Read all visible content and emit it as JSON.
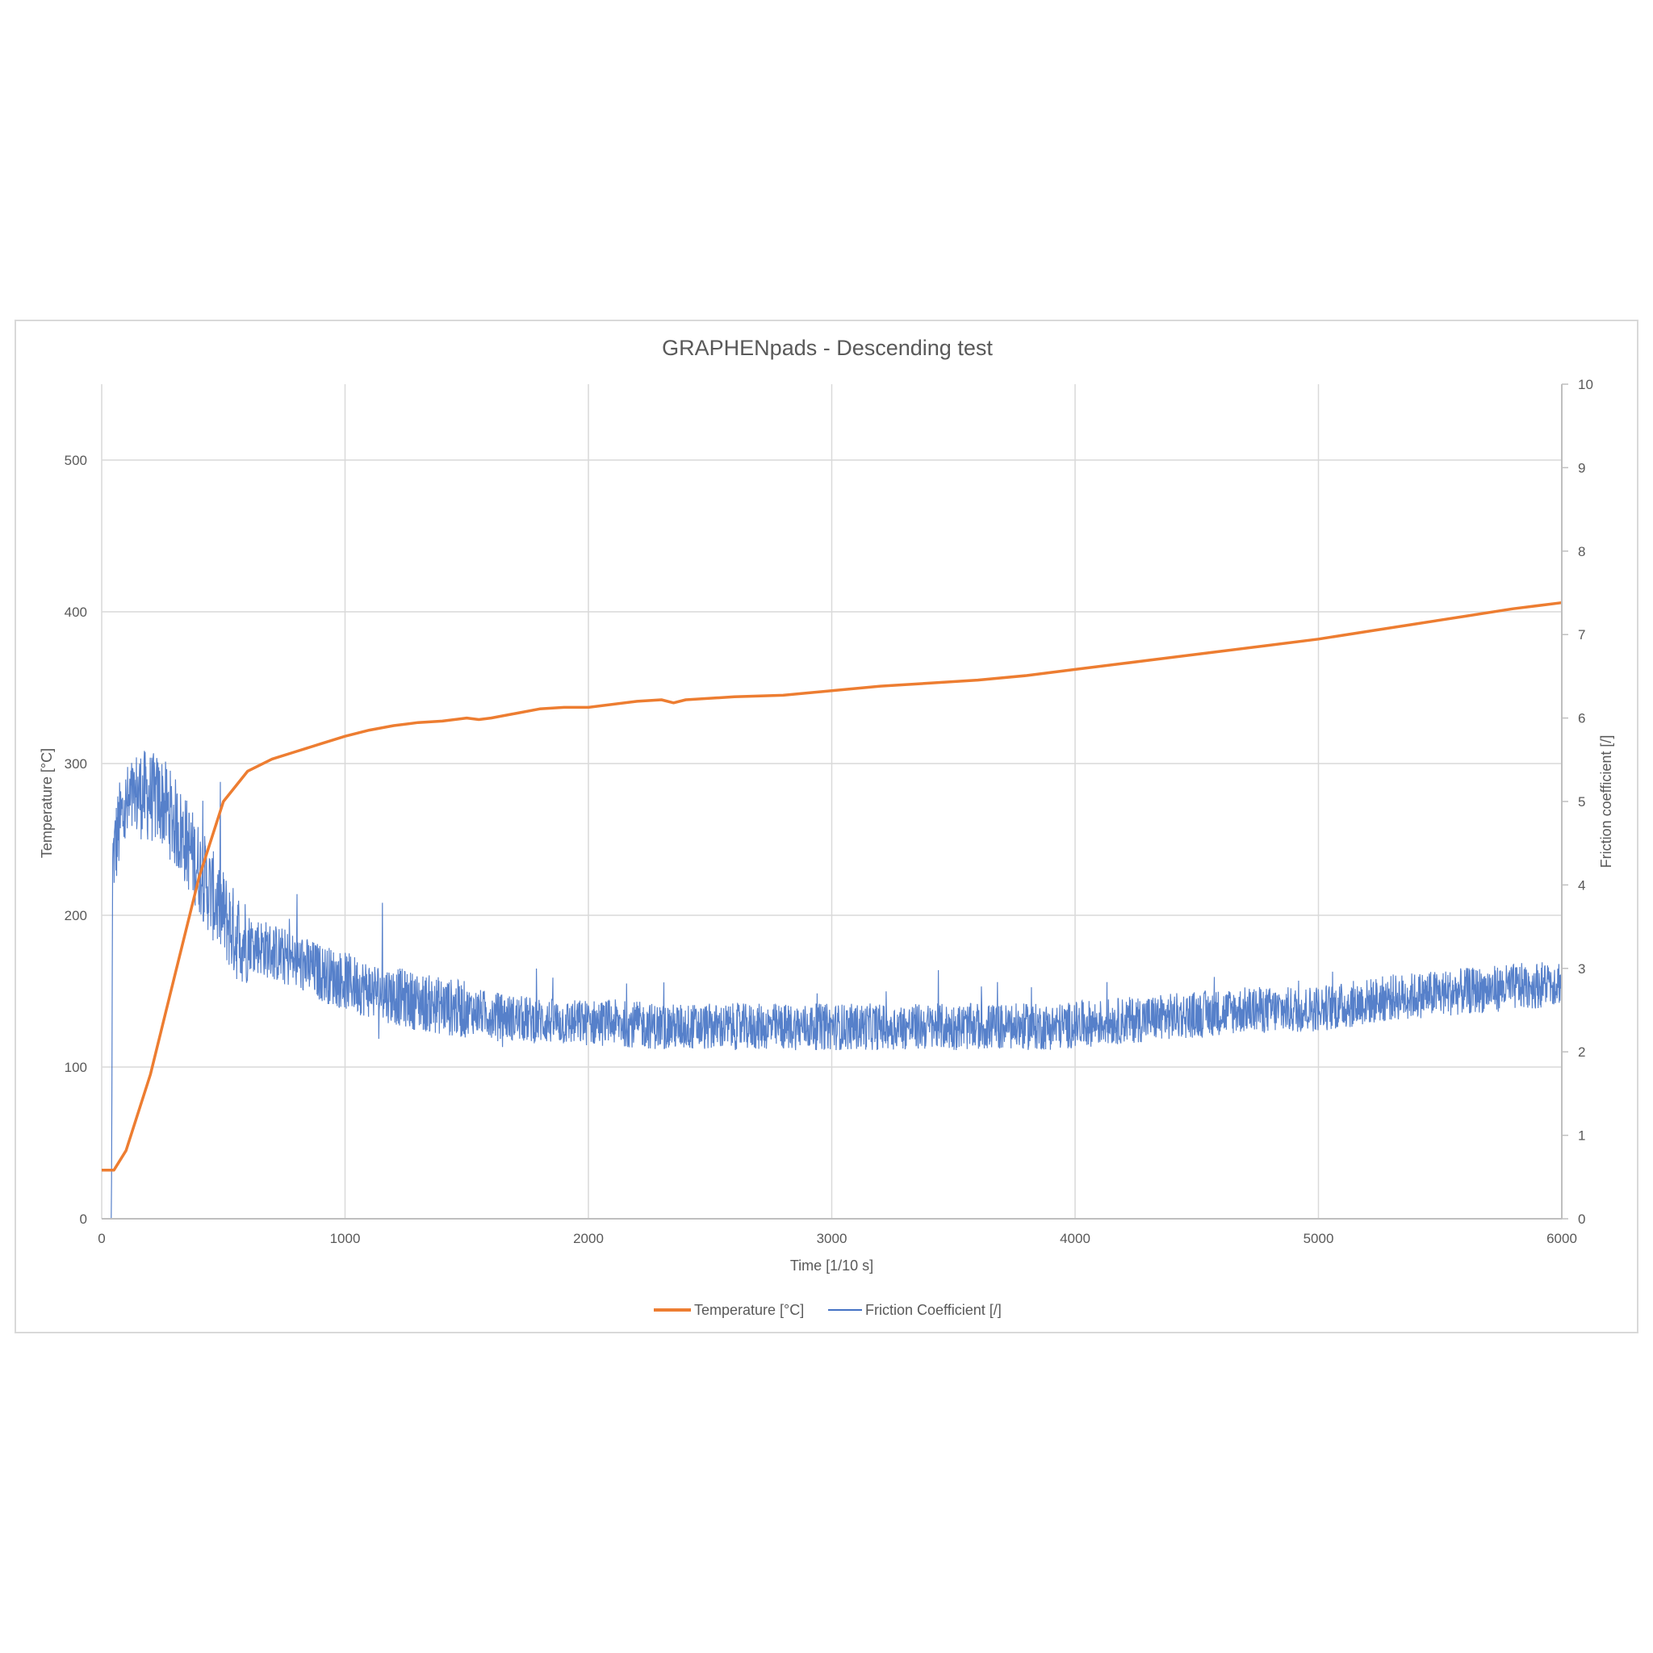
{
  "chart_data": {
    "type": "line",
    "title": "GRAPHENpads - Descending test",
    "xlabel": "Time [1/10 s]",
    "ylabel_left": "Temperature [°C]",
    "ylabel_right": "Friction coefficient [/]",
    "xlim": [
      0,
      6000
    ],
    "ylim_left": [
      0,
      550
    ],
    "ylim_right": [
      0,
      10
    ],
    "x_ticks": [
      "0",
      "1000",
      "2000",
      "3000",
      "4000",
      "5000",
      "6000"
    ],
    "y_left_ticks": [
      "0",
      "100",
      "200",
      "300",
      "400",
      "500"
    ],
    "y_right_ticks": [
      "0",
      "1",
      "2",
      "3",
      "4",
      "5",
      "6",
      "7",
      "8",
      "9",
      "10"
    ],
    "grid": true,
    "legend_position": "bottom",
    "series": [
      {
        "name": "Temperature [°C]",
        "axis": "left",
        "color": "#ED7D31",
        "x": [
          0,
          50,
          100,
          200,
          300,
          400,
          500,
          600,
          700,
          800,
          900,
          1000,
          1100,
          1200,
          1300,
          1400,
          1500,
          1550,
          1600,
          1700,
          1800,
          1900,
          2000,
          2200,
          2300,
          2350,
          2400,
          2600,
          2800,
          3000,
          3200,
          3400,
          3600,
          3800,
          4000,
          4200,
          4400,
          4600,
          4800,
          5000,
          5200,
          5400,
          5600,
          5800,
          6000
        ],
        "y": [
          32,
          32,
          45,
          95,
          160,
          225,
          275,
          295,
          303,
          308,
          313,
          318,
          322,
          325,
          327,
          328,
          330,
          329,
          330,
          333,
          336,
          337,
          337,
          341,
          342,
          340,
          342,
          344,
          345,
          348,
          351,
          353,
          355,
          358,
          362,
          366,
          370,
          374,
          378,
          382,
          387,
          392,
          397,
          402,
          406
        ]
      },
      {
        "name": "Friction Coefficient [/]",
        "axis": "right",
        "color": "#4472C4",
        "x": [
          0,
          40,
          45,
          80,
          150,
          250,
          350,
          450,
          550,
          700,
          900,
          1100,
          1300,
          1500,
          1700,
          1900,
          2100,
          2300,
          2500,
          2700,
          2900,
          3100,
          3300,
          3500,
          3700,
          3900,
          4100,
          4300,
          4500,
          4700,
          4900,
          5100,
          5300,
          5500,
          5700,
          5900,
          6000
        ],
        "y": [
          0,
          0,
          4.3,
          4.8,
          5.1,
          5.0,
          4.5,
          3.9,
          3.4,
          3.2,
          2.95,
          2.75,
          2.6,
          2.5,
          2.4,
          2.35,
          2.35,
          2.3,
          2.3,
          2.3,
          2.3,
          2.3,
          2.3,
          2.3,
          2.3,
          2.3,
          2.35,
          2.4,
          2.45,
          2.5,
          2.5,
          2.55,
          2.65,
          2.7,
          2.75,
          2.8,
          2.85
        ]
      }
    ]
  }
}
